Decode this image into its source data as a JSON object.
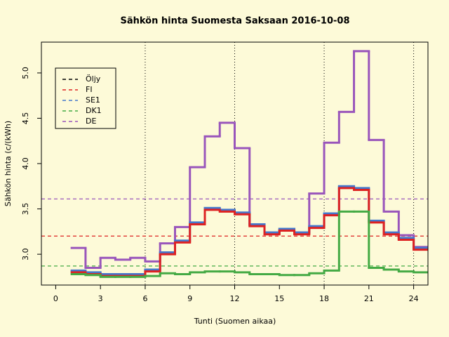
{
  "chart_data": {
    "type": "step",
    "title": "Sähkön hinta Suomesta Saksaan 2016-10-08",
    "xlabel": "Tunti (Suomen aikaa)",
    "ylabel": "Sähkön hinta (c/(kWh)",
    "x": [
      1,
      2,
      3,
      4,
      5,
      6,
      7,
      8,
      9,
      10,
      11,
      12,
      13,
      14,
      15,
      16,
      17,
      18,
      19,
      20,
      21,
      22,
      23,
      24
    ],
    "xlim": [
      -0.96,
      24.96
    ],
    "ylim": [
      2.66,
      5.34
    ],
    "xticks": [
      0,
      3,
      6,
      9,
      12,
      15,
      18,
      21,
      24
    ],
    "yticks": [
      {
        "value": 3,
        "label": "3.0"
      },
      3.5,
      {
        "value": 4,
        "label": "4.0"
      },
      4.5,
      {
        "value": 5,
        "label": "5.0"
      }
    ],
    "vlines": [
      6,
      12,
      18,
      24
    ],
    "legend": "top-left",
    "series": [
      {
        "name": "Öljy",
        "color": "#000000"
      },
      {
        "name": "FI",
        "color": "#dd2222",
        "hline": 3.2,
        "values": [
          2.8,
          2.78,
          2.76,
          2.76,
          2.76,
          2.81,
          3.0,
          3.13,
          3.33,
          3.49,
          3.47,
          3.44,
          3.31,
          3.22,
          3.26,
          3.22,
          3.29,
          3.43,
          3.73,
          3.71,
          3.35,
          3.22,
          3.16,
          3.05
        ]
      },
      {
        "name": "SE1",
        "color": "#4477cc",
        "values": [
          2.82,
          2.8,
          2.78,
          2.78,
          2.78,
          2.83,
          3.02,
          3.15,
          3.35,
          3.51,
          3.49,
          3.46,
          3.33,
          3.24,
          3.28,
          3.24,
          3.31,
          3.45,
          3.75,
          3.73,
          3.37,
          3.24,
          3.18,
          3.07
        ]
      },
      {
        "name": "DK1",
        "color": "#44aa44",
        "hline": 2.87,
        "values": [
          2.78,
          2.77,
          2.75,
          2.75,
          2.75,
          2.76,
          2.79,
          2.78,
          2.8,
          2.81,
          2.81,
          2.8,
          2.78,
          2.78,
          2.77,
          2.77,
          2.79,
          2.82,
          3.47,
          3.47,
          2.85,
          2.83,
          2.81,
          2.8
        ]
      },
      {
        "name": "DE",
        "color": "#9955bb",
        "hline": 3.61,
        "values": [
          3.07,
          2.85,
          2.96,
          2.94,
          2.96,
          2.92,
          3.12,
          3.3,
          3.96,
          4.3,
          4.45,
          4.17,
          3.33,
          3.24,
          3.26,
          3.24,
          3.67,
          4.23,
          4.57,
          5.24,
          4.26,
          3.47,
          3.21,
          3.08
        ]
      }
    ]
  }
}
